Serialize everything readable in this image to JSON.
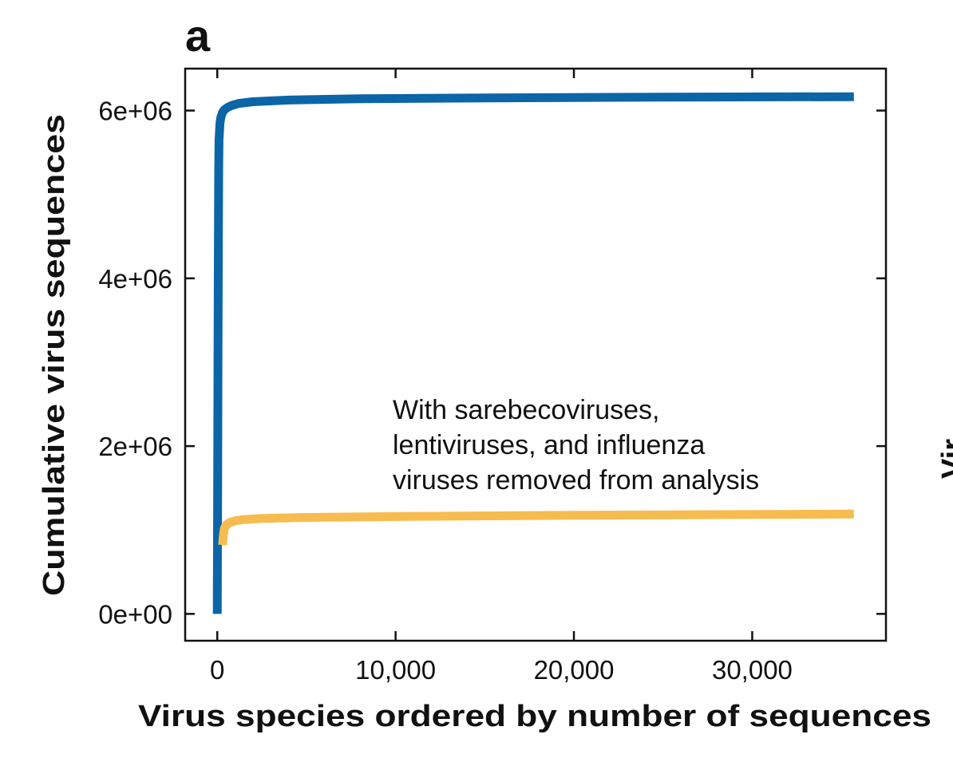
{
  "panel_label": "a",
  "edge_fragment_text": "Vir",
  "chart_data": {
    "type": "line",
    "title": "",
    "xlabel": "Virus species ordered by number of sequences",
    "ylabel": "Cumulative virus sequences",
    "xlim": [
      -1800,
      37500
    ],
    "ylim": [
      -320000,
      6500000
    ],
    "xticks": [
      0,
      10000,
      20000,
      30000
    ],
    "xtick_labels": [
      "0",
      "10,000",
      "20,000",
      "30,000"
    ],
    "yticks": [
      0,
      2000000,
      4000000,
      6000000
    ],
    "ytick_labels": [
      "0e+00",
      "2e+06",
      "4e+06",
      "6e+06"
    ],
    "grid": false,
    "series": [
      {
        "color": "#0b65a6",
        "x": [
          0,
          20,
          40,
          60,
          80,
          100,
          150,
          200,
          300,
          400,
          600,
          800,
          1200,
          2000,
          4000,
          8000,
          15000,
          25000,
          35700
        ],
        "y": [
          0,
          1500000,
          3000000,
          4400000,
          5300000,
          5650000,
          5850000,
          5920000,
          5980000,
          6010000,
          6040000,
          6060000,
          6085000,
          6105000,
          6125000,
          6140000,
          6150000,
          6160000,
          6165000
        ]
      },
      {
        "color": "#f6bc4f",
        "x": [
          300,
          350,
          400,
          500,
          700,
          1000,
          1500,
          2500,
          5000,
          10000,
          20000,
          30000,
          35700
        ],
        "y": [
          820000,
          950000,
          1020000,
          1060000,
          1090000,
          1110000,
          1125000,
          1138000,
          1150000,
          1160000,
          1175000,
          1185000,
          1190000
        ]
      }
    ],
    "annotation": {
      "lines": [
        "With sarebecoviruses,",
        "lentiviruses, and influenza",
        "viruses removed from analysis"
      ]
    }
  }
}
